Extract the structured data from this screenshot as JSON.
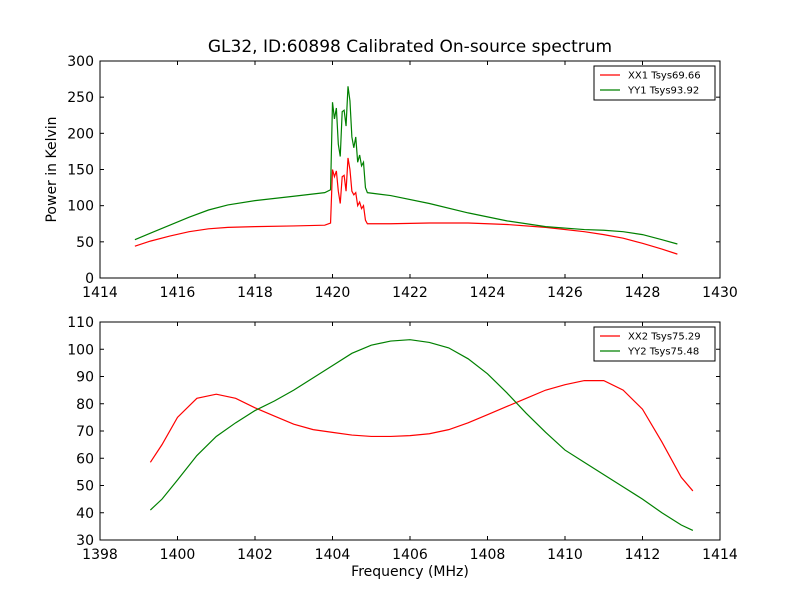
{
  "figure": {
    "title": "GL32, ID:60898 Calibrated On-source spectrum"
  },
  "chart_data": [
    {
      "type": "line",
      "title": "GL32, ID:60898 Calibrated On-source spectrum",
      "xlabel": "",
      "ylabel": "Power in Kelvin",
      "xlim": [
        1414,
        1430
      ],
      "ylim": [
        0,
        300
      ],
      "xticks": [
        1414,
        1416,
        1418,
        1420,
        1422,
        1424,
        1426,
        1428,
        1430
      ],
      "yticks": [
        0,
        50,
        100,
        150,
        200,
        250,
        300
      ],
      "grid": false,
      "legend_position": "top-right",
      "series": [
        {
          "name": "XX1 Tsys69.66",
          "color": "#ff0000",
          "x": [
            1414.9,
            1415.3,
            1415.8,
            1416.3,
            1416.8,
            1417.3,
            1418.0,
            1419.0,
            1419.8,
            1419.95,
            1420.0,
            1420.05,
            1420.1,
            1420.15,
            1420.2,
            1420.25,
            1420.3,
            1420.35,
            1420.4,
            1420.45,
            1420.5,
            1420.55,
            1420.6,
            1420.65,
            1420.7,
            1420.75,
            1420.8,
            1420.85,
            1420.9,
            1421.5,
            1422.5,
            1423.5,
            1424.5,
            1425.5,
            1426.5,
            1427.0,
            1427.5,
            1428.0,
            1428.5,
            1428.9
          ],
          "y": [
            44,
            51,
            58,
            64,
            68,
            70,
            71,
            72,
            73,
            76,
            150,
            140,
            148,
            120,
            103,
            140,
            142,
            120,
            166,
            150,
            120,
            115,
            118,
            100,
            105,
            96,
            100,
            80,
            75,
            75,
            76,
            76,
            74,
            70,
            64,
            60,
            55,
            48,
            40,
            33
          ]
        },
        {
          "name": "YY1 Tsys93.92",
          "color": "#008000",
          "x": [
            1414.9,
            1415.3,
            1415.8,
            1416.3,
            1416.8,
            1417.3,
            1418.0,
            1419.0,
            1419.8,
            1419.95,
            1420.0,
            1420.05,
            1420.1,
            1420.15,
            1420.2,
            1420.25,
            1420.3,
            1420.35,
            1420.4,
            1420.45,
            1420.5,
            1420.55,
            1420.6,
            1420.65,
            1420.7,
            1420.75,
            1420.8,
            1420.85,
            1420.9,
            1421.5,
            1422.5,
            1423.5,
            1424.5,
            1425.5,
            1426.5,
            1427.0,
            1427.5,
            1428.0,
            1428.5,
            1428.9
          ],
          "y": [
            53,
            62,
            73,
            84,
            94,
            101,
            107,
            113,
            118,
            122,
            243,
            220,
            235,
            185,
            168,
            230,
            232,
            210,
            265,
            245,
            195,
            180,
            195,
            160,
            170,
            155,
            160,
            125,
            118,
            114,
            103,
            90,
            79,
            71,
            67,
            66,
            64,
            60,
            53,
            47
          ]
        }
      ]
    },
    {
      "type": "line",
      "title": "",
      "xlabel": "Frequency (MHz)",
      "ylabel": "",
      "xlim": [
        1398,
        1414
      ],
      "ylim": [
        30,
        110
      ],
      "xticks": [
        1398,
        1400,
        1402,
        1404,
        1406,
        1408,
        1410,
        1412,
        1414
      ],
      "yticks": [
        30,
        40,
        50,
        60,
        70,
        80,
        90,
        100,
        110
      ],
      "grid": false,
      "legend_position": "top-right",
      "series": [
        {
          "name": "XX2 Tsys75.29",
          "color": "#ff0000",
          "x": [
            1399.3,
            1399.6,
            1400.0,
            1400.5,
            1401.0,
            1401.5,
            1402.0,
            1402.5,
            1403.0,
            1403.5,
            1404.0,
            1404.5,
            1405.0,
            1405.5,
            1406.0,
            1406.5,
            1407.0,
            1407.5,
            1408.0,
            1408.5,
            1409.0,
            1409.5,
            1410.0,
            1410.5,
            1411.0,
            1411.5,
            1412.0,
            1412.5,
            1413.0,
            1413.3
          ],
          "y": [
            58.5,
            65,
            75,
            82,
            83.5,
            82,
            78.5,
            75.5,
            72.5,
            70.5,
            69.5,
            68.5,
            68,
            68,
            68.3,
            69,
            70.5,
            73,
            76,
            79,
            82,
            85,
            87,
            88.5,
            88.5,
            85,
            78,
            66,
            53,
            48
          ]
        },
        {
          "name": "YY2 Tsys75.48",
          "color": "#008000",
          "x": [
            1399.3,
            1399.6,
            1400.0,
            1400.5,
            1401.0,
            1401.5,
            1402.0,
            1402.5,
            1403.0,
            1403.5,
            1404.0,
            1404.5,
            1405.0,
            1405.5,
            1406.0,
            1406.5,
            1407.0,
            1407.5,
            1408.0,
            1408.5,
            1409.0,
            1409.5,
            1410.0,
            1410.5,
            1411.0,
            1411.5,
            1412.0,
            1412.5,
            1413.0,
            1413.3
          ],
          "y": [
            41,
            45,
            52,
            61,
            68,
            73,
            77.5,
            81,
            85,
            89.5,
            94,
            98.5,
            101.5,
            103,
            103.5,
            102.5,
            100.5,
            96.5,
            91,
            84,
            76.5,
            69.5,
            63,
            58.5,
            54,
            49.5,
            45,
            40,
            35.5,
            33.5
          ]
        }
      ]
    }
  ]
}
